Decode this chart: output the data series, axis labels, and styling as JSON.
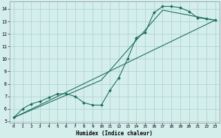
{
  "xlabel": "Humidex (Indice chaleur)",
  "bg_color": "#d4eeec",
  "grid_color": "#aed4d0",
  "line_color": "#1a6b5a",
  "xlim": [
    -0.5,
    23.5
  ],
  "ylim": [
    4.9,
    14.6
  ],
  "xticks": [
    0,
    1,
    2,
    3,
    4,
    5,
    6,
    7,
    8,
    9,
    10,
    11,
    12,
    13,
    14,
    15,
    16,
    17,
    18,
    19,
    20,
    21,
    22,
    23
  ],
  "yticks": [
    5,
    6,
    7,
    8,
    9,
    10,
    11,
    12,
    13,
    14
  ],
  "line1_x": [
    0,
    1,
    2,
    3,
    4,
    5,
    6,
    7,
    8,
    9,
    10,
    11,
    12,
    13,
    14,
    15,
    16,
    17,
    18,
    19,
    20,
    21,
    22,
    23
  ],
  "line1_y": [
    5.3,
    6.0,
    6.4,
    6.6,
    6.9,
    7.2,
    7.2,
    7.0,
    6.5,
    6.3,
    6.3,
    7.5,
    8.5,
    10.0,
    11.7,
    12.1,
    13.7,
    14.2,
    14.2,
    14.1,
    13.8,
    13.3,
    13.2,
    13.1
  ],
  "line2_x": [
    0,
    23
  ],
  "line2_y": [
    5.3,
    13.1
  ],
  "line3_x": [
    0,
    10,
    17,
    23
  ],
  "line3_y": [
    5.3,
    8.3,
    13.9,
    13.1
  ],
  "marker_size": 2.2,
  "xlabel_fontsize": 5.5,
  "tick_fontsize": 4.5
}
